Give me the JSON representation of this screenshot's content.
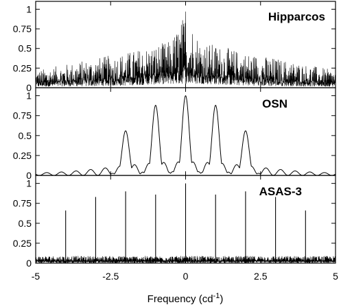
{
  "chart_data": {
    "type": "line",
    "description_axis": "shared",
    "xlabel": {
      "main": "Frequency (cd",
      "superscript": "-1",
      "close": ")"
    },
    "xlim": [
      -5,
      5
    ],
    "xticks": [
      -5,
      -2.5,
      0,
      2.5,
      5
    ],
    "xtick_labels": [
      "-5",
      "-2.5",
      "0",
      "2.5",
      "5"
    ],
    "grid": false,
    "colors": {
      "line": "#000000",
      "axes": "#000000",
      "background": "#ffffff"
    },
    "panels": [
      {
        "id": "hipparcos",
        "label": "Hipparcos",
        "ylim": [
          0,
          1.1
        ],
        "yticks": [
          0,
          0.25,
          0.5,
          0.75,
          1
        ],
        "ytick_labels": [
          "0",
          "0.25",
          "0.5",
          "0.75",
          "1"
        ],
        "kind": "noise_envelope",
        "envelope": {
          "x": [
            -5,
            -4,
            -3,
            -2,
            -1,
            -0.5,
            0,
            0.5,
            1,
            2,
            3,
            4,
            5
          ],
          "peak": [
            0.22,
            0.3,
            0.38,
            0.45,
            0.55,
            0.6,
            0.97,
            0.6,
            0.55,
            0.45,
            0.38,
            0.3,
            0.22
          ],
          "floor": [
            0.04,
            0.05,
            0.06,
            0.08,
            0.12,
            0.14,
            0.15,
            0.14,
            0.12,
            0.08,
            0.06,
            0.05,
            0.04
          ]
        }
      },
      {
        "id": "osn",
        "label": "OSN",
        "ylim": [
          0,
          1.1
        ],
        "yticks": [
          0,
          0.25,
          0.5,
          0.75,
          1
        ],
        "ytick_labels": [
          "0",
          "0.25",
          "0.5",
          "0.75",
          "1"
        ],
        "kind": "window_function",
        "alias_spacing": 1,
        "peaks": [
          {
            "x": -2,
            "y": 0.56
          },
          {
            "x": -1,
            "y": 0.88
          },
          {
            "x": 0,
            "y": 1.0
          },
          {
            "x": 1,
            "y": 0.88
          },
          {
            "x": 2,
            "y": 0.56
          }
        ],
        "sidelobe_level": 0.17
      },
      {
        "id": "asas3",
        "label": "ASAS-3",
        "ylim": [
          0,
          1.1
        ],
        "yticks": [
          0,
          0.25,
          0.5,
          0.75,
          1
        ],
        "ytick_labels": [
          "0",
          "0.25",
          "0.5",
          "0.75",
          "1"
        ],
        "kind": "spikes",
        "spikes": [
          {
            "x": -4,
            "y": 0.66
          },
          {
            "x": -3,
            "y": 0.83
          },
          {
            "x": -2,
            "y": 0.9
          },
          {
            "x": -1,
            "y": 0.86
          },
          {
            "x": 0,
            "y": 1.0
          },
          {
            "x": 1,
            "y": 0.86
          },
          {
            "x": 2,
            "y": 0.9
          },
          {
            "x": 3,
            "y": 0.83
          },
          {
            "x": 4,
            "y": 0.66
          }
        ],
        "noise_level": 0.06
      }
    ]
  }
}
